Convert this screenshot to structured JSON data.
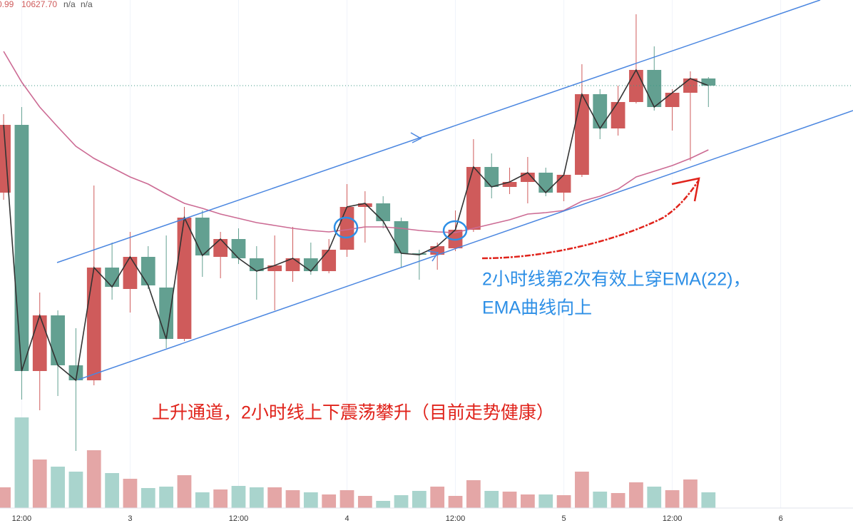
{
  "chart_data": {
    "type": "candlestick",
    "header": [
      "0.99",
      "10627.70",
      "n/a",
      "n/a"
    ],
    "annotations": [
      "2小时线第2次有效上穿EMA(22)，",
      "EMA曲线向上",
      "上升通道，2小时线上下震荡攀升（目前走势健康）"
    ],
    "up_color": "#cf5b5b",
    "down_color": "#63a091",
    "volume_up_color": "#e4a6a6",
    "volume_down_color": "#a9d4cd",
    "line_color": "#333333",
    "ema_color": "#cc6b94",
    "grid": true,
    "xlim": [
      -0.4,
      94
    ],
    "ylim": [
      9443.7,
      10867.7
    ],
    "vlim": [
      0,
      712
    ],
    "xticks": [
      {
        "value": 2,
        "label": "12:00"
      },
      {
        "value": 14,
        "label": "3"
      },
      {
        "value": 26,
        "label": "12:00"
      },
      {
        "value": 38,
        "label": "4"
      },
      {
        "value": 50,
        "label": "12:00"
      },
      {
        "value": 62,
        "label": "5"
      },
      {
        "value": 74,
        "label": "12:00"
      },
      {
        "value": 86,
        "label": "6"
      }
    ],
    "x": [
      0,
      2,
      4,
      6,
      8,
      10,
      12,
      14,
      16,
      18,
      20,
      22,
      24,
      26,
      28,
      30,
      32,
      34,
      36,
      38,
      40,
      42,
      44,
      46,
      48,
      50,
      52,
      54,
      56,
      58,
      60,
      62,
      64,
      66,
      68,
      70,
      72,
      74,
      76,
      78
    ],
    "open": [
      10327.7,
      10517.7,
      9827.7,
      9983.7,
      9843.7,
      9801.7,
      10117.7,
      10057.7,
      10147.7,
      10061.7,
      9917.7,
      10257.7,
      10147.7,
      10197.7,
      10143.7,
      10107.7,
      10107.7,
      10143.7,
      10107.7,
      10167.7,
      10287.7,
      10297.7,
      10247.7,
      10157.7,
      10153.7,
      10171.7,
      10223.7,
      10399.7,
      10343.7,
      10357.7,
      10383.7,
      10327.7,
      10377.7,
      10603.7,
      10507.7,
      10581.7,
      10671.7,
      10567.7,
      10607.7,
      10647.7
    ],
    "close": [
      10517.7,
      9827.7,
      9983.7,
      9843.7,
      9801.7,
      10117.7,
      10063.7,
      10147.7,
      10067.7,
      9917.7,
      10257.7,
      10151.7,
      10197.7,
      10143.7,
      10107.7,
      10123.7,
      10143.7,
      10107.7,
      10167.7,
      10287.7,
      10297.7,
      10247.7,
      10157.7,
      10153.7,
      10177.7,
      10223.7,
      10399.7,
      10343.7,
      10357.7,
      10383.7,
      10327.7,
      10377.7,
      10603.7,
      10507.7,
      10581.7,
      10671.7,
      10567.7,
      10607.7,
      10647.7,
      10627.7
    ],
    "high": [
      10547.7,
      10567.7,
      10047.7,
      9997.7,
      9947.7,
      10347.7,
      10187.7,
      10217.7,
      10177.7,
      10207.7,
      10287.7,
      10277.7,
      10217.7,
      10227.7,
      10177.7,
      10207.7,
      10231.7,
      10187.7,
      10197.7,
      10351.7,
      10331.7,
      10317.7,
      10257.7,
      10167.7,
      10187.7,
      10277.7,
      10477.7,
      10437.7,
      10397.7,
      10427.7,
      10397.7,
      10383.7,
      10687.7,
      10617.7,
      10627.7,
      10827.7,
      10737.7,
      10617.7,
      10667.7,
      10651.7
    ],
    "low": [
      10307.7,
      9747.7,
      9717.7,
      9757.7,
      9603.7,
      9787.7,
      10027.7,
      9991.7,
      10057.7,
      9891.7,
      9911.7,
      10091.7,
      10087.7,
      10127.7,
      10027.7,
      9997.7,
      10077.7,
      10097.7,
      10101.7,
      10147.7,
      10187.7,
      10227.7,
      10117.7,
      10083.7,
      10111.7,
      10163.7,
      10217.7,
      10311.7,
      10323.7,
      10297.7,
      10317.7,
      10303.7,
      10371.7,
      10477.7,
      10487.7,
      10577.7,
      10557.7,
      10501.7,
      10417.7,
      10567.7
    ],
    "ema": [
      10723.7,
      10637.7,
      10567.7,
      10511.7,
      10457.7,
      10423.7,
      10397.7,
      10371.7,
      10351.7,
      10323.7,
      10297.7,
      10283.7,
      10267.7,
      10255.7,
      10243.7,
      10235.7,
      10227.7,
      10221.7,
      10217.7,
      10223.7,
      10231.7,
      10231.7,
      10227.7,
      10221.7,
      10217.7,
      10215.7,
      10227.7,
      10239.7,
      10251.7,
      10267.7,
      10271.7,
      10277.7,
      10303.7,
      10317.7,
      10337.7,
      10371.7,
      10387.7,
      10403.7,
      10423.7,
      10447.7
    ],
    "volume": [
      29,
      127,
      68,
      58,
      51,
      81,
      49,
      41,
      28,
      30,
      46,
      22,
      26,
      31,
      29,
      29,
      25,
      22,
      19,
      25,
      17,
      10,
      18,
      24,
      30,
      17,
      39,
      24,
      23,
      19,
      19,
      18,
      51,
      23,
      21,
      36,
      30,
      25,
      40,
      22
    ]
  }
}
